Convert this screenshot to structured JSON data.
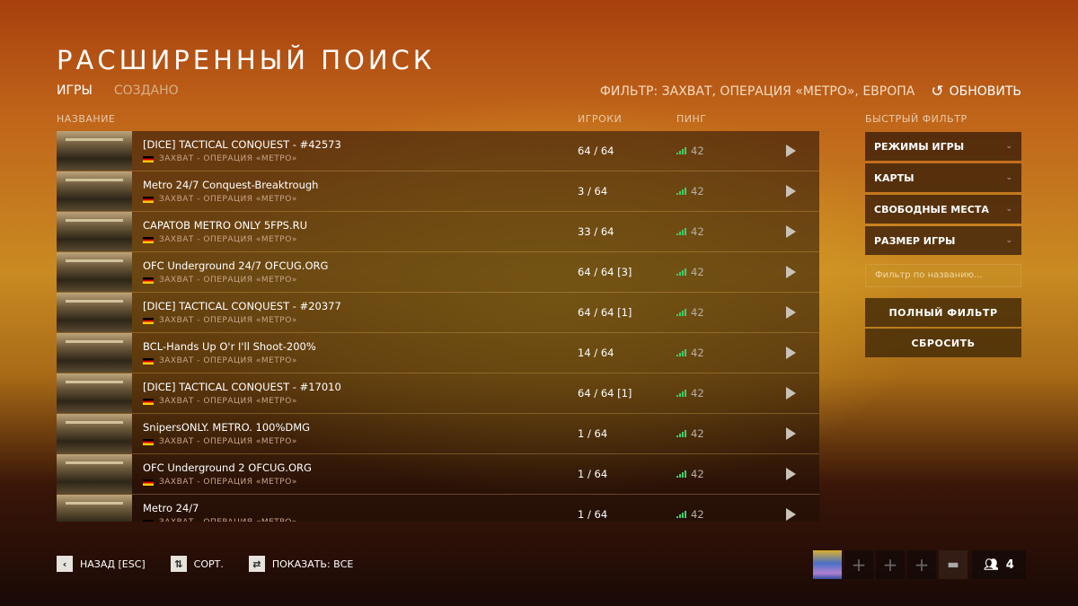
{
  "header": {
    "title": "РАСШИРЕННЫЙ ПОИСК",
    "tabs": [
      {
        "label": "ИГРЫ",
        "active": true
      },
      {
        "label": "СОЗДАНО",
        "active": false
      }
    ],
    "filter_summary": "ФИЛЬТР: ЗАХВАТ, ОПЕРАЦИЯ «МЕТРО», ЕВРОПА",
    "refresh_label": "ОБНОВИТЬ"
  },
  "columns": {
    "name": "НАЗВАНИЕ",
    "players": "ИГРОКИ",
    "ping": "ПИНГ"
  },
  "servers": [
    {
      "name": "[DICE] TACTICAL CONQUEST - #42573",
      "mode": "ЗАХВАТ - ОПЕРАЦИЯ «МЕТРО»",
      "players": "64 / 64",
      "ping": "42"
    },
    {
      "name": "Metro 24/7 Conquest-Breaktrough",
      "mode": "ЗАХВАТ - ОПЕРАЦИЯ «МЕТРО»",
      "players": "3 / 64",
      "ping": "42"
    },
    {
      "name": "CAPATOB METRO ONLY 5FPS.RU",
      "mode": "ЗАХВАТ - ОПЕРАЦИЯ «МЕТРО»",
      "players": "33 / 64",
      "ping": "42"
    },
    {
      "name": "OFC Underground 24/7 OFCUG.ORG",
      "mode": "ЗАХВАТ - ОПЕРАЦИЯ «МЕТРО»",
      "players": "64 / 64 [3]",
      "ping": "42"
    },
    {
      "name": "[DICE] TACTICAL CONQUEST - #20377",
      "mode": "ЗАХВАТ - ОПЕРАЦИЯ «МЕТРО»",
      "players": "64 / 64 [1]",
      "ping": "42"
    },
    {
      "name": "BCL-Hands Up O'r I'll Shoot-200%",
      "mode": "ЗАХВАТ - ОПЕРАЦИЯ «МЕТРО»",
      "players": "14 / 64",
      "ping": "42"
    },
    {
      "name": "[DICE] TACTICAL CONQUEST - #17010",
      "mode": "ЗАХВАТ - ОПЕРАЦИЯ «МЕТРО»",
      "players": "64 / 64 [1]",
      "ping": "42"
    },
    {
      "name": "SnipersONLY. METRO. 100%DMG",
      "mode": "ЗАХВАТ - ОПЕРАЦИЯ «МЕТРО»",
      "players": "1 / 64",
      "ping": "42"
    },
    {
      "name": "OFC Underground 2 OFCUG.ORG",
      "mode": "ЗАХВАТ - ОПЕРАЦИЯ «МЕТРО»",
      "players": "1 / 64",
      "ping": "42"
    },
    {
      "name": "Metro 24/7",
      "mode": "ЗАХВАТ - ОПЕРАЦИЯ «МЕТРО»",
      "players": "1 / 64",
      "ping": "42"
    }
  ],
  "quick_filter": {
    "title": "БЫСТРЫЙ ФИЛЬТР",
    "dropdowns": [
      "РЕЖИМЫ ИГРЫ",
      "КАРТЫ",
      "СВОБОДНЫЕ МЕСТА",
      "РАЗМЕР ИГРЫ"
    ],
    "name_placeholder": "Фильтр по названию...",
    "full_filter": "ПОЛНЫЙ ФИЛЬТР",
    "reset": "СБРОСИТЬ"
  },
  "bottom": {
    "back": "НАЗАД [ESC]",
    "sort": "СОРТ.",
    "show": "ПОКАЗАТЬ: ВСЕ"
  },
  "squad": {
    "count": "4"
  },
  "colors": {
    "ping_bars": "#3fcf6a",
    "flag": "germany"
  }
}
